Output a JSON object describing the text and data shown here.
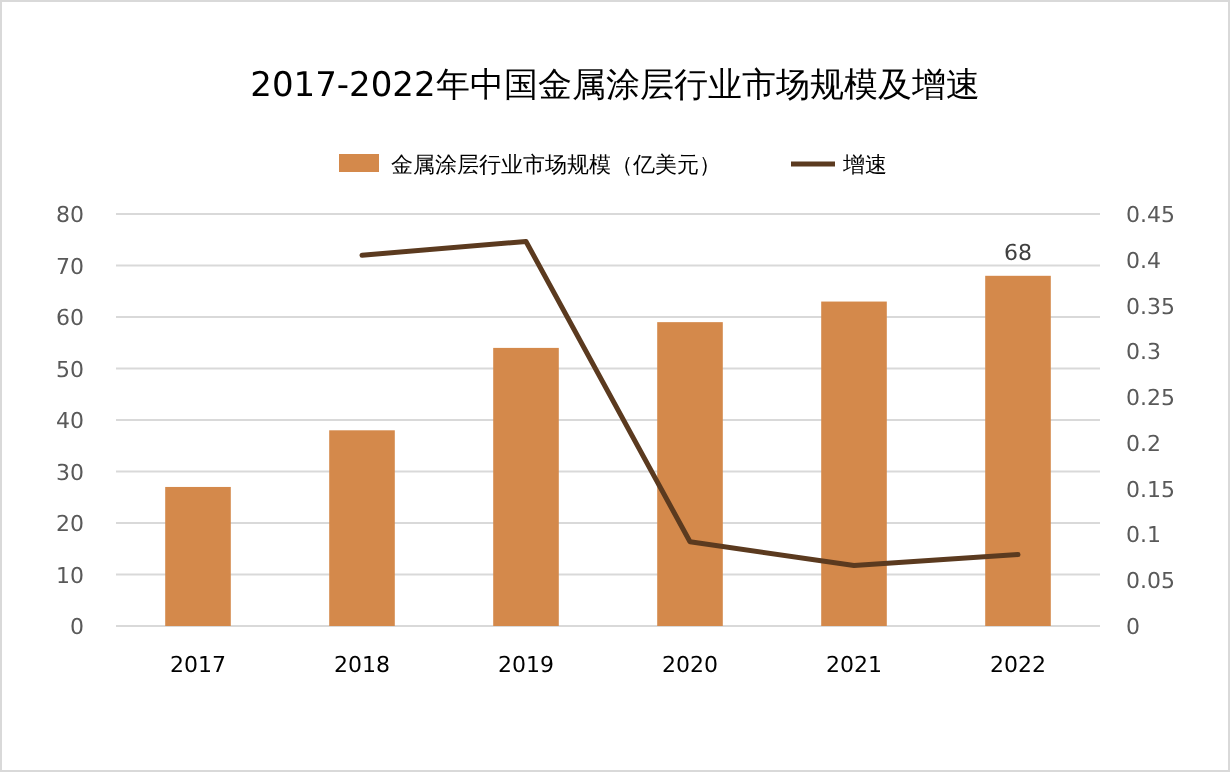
{
  "chart_data": {
    "type": "bar",
    "title": "2017-2022年中国金属涂层行业市场规模及增速",
    "categories": [
      "2017",
      "2018",
      "2019",
      "2020",
      "2021",
      "2022"
    ],
    "series": [
      {
        "name": "金属涂层行业市场规模（亿美元）",
        "color": "#d4894b",
        "values": [
          27,
          38,
          54,
          59,
          63,
          68
        ],
        "value_labels": [
          null,
          null,
          null,
          null,
          null,
          "68"
        ]
      },
      {
        "name": "增速",
        "type": "line",
        "axis": "y2",
        "color": "#5b3a1f",
        "values": [
          null,
          0.405,
          0.42,
          0.092,
          0.066,
          0.078
        ]
      }
    ],
    "ylim": [
      0,
      80
    ],
    "yticks": [
      0,
      10,
      20,
      30,
      40,
      50,
      60,
      70,
      80
    ],
    "y2lim": [
      0,
      0.45
    ],
    "y2ticks": [
      0,
      0.05,
      0.1,
      0.15,
      0.2,
      0.25,
      0.3,
      0.35,
      0.4,
      0.45
    ],
    "grid": "y",
    "legend": "top",
    "marker": "none",
    "line_style": "solid"
  }
}
